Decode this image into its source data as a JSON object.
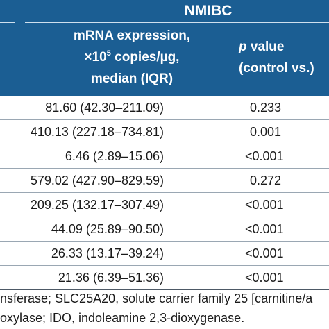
{
  "header": {
    "group_title": "NMIBC",
    "expression_col": {
      "line1": "mRNA expression,",
      "line2_prefix": "×10",
      "line2_sup": "5",
      "line2_suffix": " copies/µg,",
      "line3": "median (IQR)"
    },
    "pvalue_col": {
      "line1_italic": "p",
      "line1_rest": " value",
      "line2": "(control vs.)"
    }
  },
  "rows": [
    {
      "median": "81.60 (42.30–211.09)",
      "p": "0.233"
    },
    {
      "median": "410.13 (227.18–734.81)",
      "p": "0.001"
    },
    {
      "median": "6.46 (2.89–15.06)",
      "p": "<0.001"
    },
    {
      "median": "579.02 (427.90–829.59)",
      "p": "0.272"
    },
    {
      "median": "209.25 (132.17–307.49)",
      "p": "<0.001"
    },
    {
      "median": "44.09 (25.89–90.50)",
      "p": "<0.001"
    },
    {
      "median": "26.33 (13.17–39.24)",
      "p": "<0.001"
    },
    {
      "median": "21.36 (6.39–51.36)",
      "p": "<0.001"
    }
  ],
  "footnotes": {
    "line1": "nsferase; SLC25A20, solute carrier family 25 [carnitine/a",
    "line2": "oxylase; IDO, indoleamine 2,3-dioxygenase."
  },
  "colors": {
    "header_band": "#1b5e93",
    "header_text": "#ffffff",
    "body_text": "#1a1a1a",
    "row_rule": "#9aa7b3"
  }
}
